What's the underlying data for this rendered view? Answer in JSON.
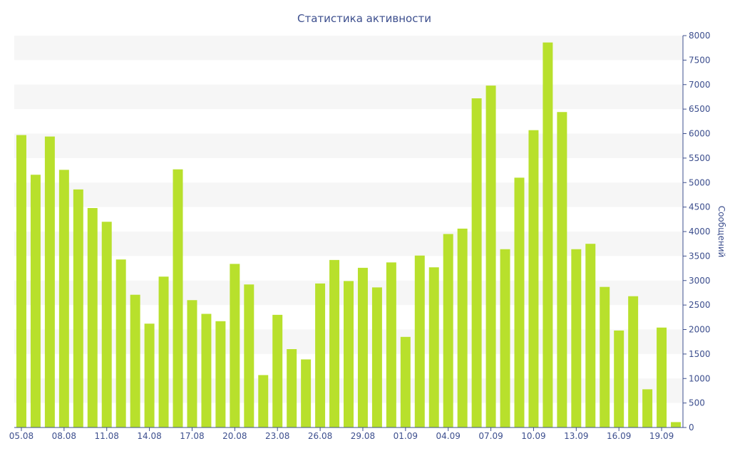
{
  "colors": {
    "bar": "#b8e02c",
    "band": "#f6f6f6",
    "axis": "#3d4f8e",
    "text": "#3d4f8e"
  },
  "chart_data": {
    "type": "bar",
    "title": "Статистика активности",
    "xlabel": "",
    "ylabel": "Сообщений",
    "y_axis_side": "right",
    "ylim": [
      0,
      8000
    ],
    "y_ticks": [
      0,
      500,
      1000,
      1500,
      2000,
      2500,
      3000,
      3500,
      4000,
      4500,
      5000,
      5500,
      6000,
      6500,
      7000,
      7500,
      8000
    ],
    "alternating_bands": true,
    "legend": "none",
    "categories": [
      "05.08",
      "06.08",
      "07.08",
      "08.08",
      "09.08",
      "10.08",
      "11.08",
      "12.08",
      "13.08",
      "14.08",
      "15.08",
      "16.08",
      "17.08",
      "18.08",
      "19.08",
      "20.08",
      "21.08",
      "22.08",
      "23.08",
      "24.08",
      "25.08",
      "26.08",
      "27.08",
      "28.08",
      "29.08",
      "30.08",
      "31.08",
      "01.09",
      "02.09",
      "03.09",
      "04.09",
      "05.09",
      "06.09",
      "07.09",
      "08.09",
      "09.09",
      "10.09",
      "11.09",
      "12.09",
      "13.09",
      "14.09",
      "15.09",
      "16.09",
      "17.09",
      "18.09",
      "19.09",
      "20.09"
    ],
    "x_tick_labels": [
      "05.08",
      "08.08",
      "11.08",
      "14.08",
      "17.08",
      "20.08",
      "23.08",
      "26.08",
      "29.08",
      "01.09",
      "04.09",
      "07.09",
      "10.09",
      "13.09",
      "16.09",
      "19.09"
    ],
    "values": [
      5970,
      5160,
      5940,
      5260,
      4860,
      4480,
      4200,
      3430,
      2710,
      2120,
      3080,
      5270,
      2600,
      2320,
      2170,
      3340,
      2920,
      1070,
      2300,
      1600,
      1390,
      2940,
      3420,
      2990,
      3260,
      2860,
      3370,
      1850,
      3510,
      3270,
      3950,
      4060,
      6720,
      6980,
      3640,
      5100,
      6070,
      7860,
      6440,
      3640,
      3750,
      2870,
      1980,
      2680,
      780,
      2040,
      110
    ]
  }
}
